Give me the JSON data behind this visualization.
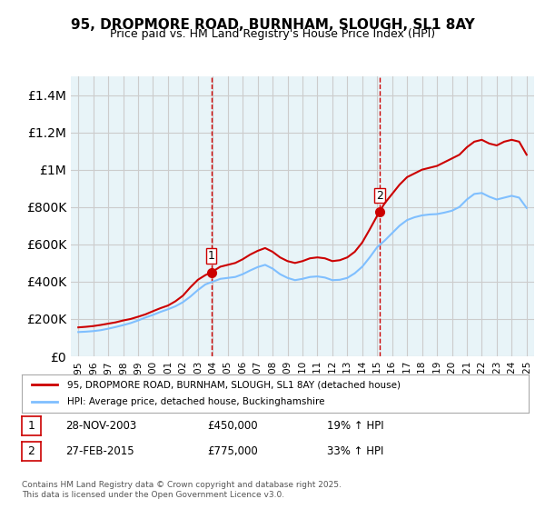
{
  "title": "95, DROPMORE ROAD, BURNHAM, SLOUGH, SL1 8AY",
  "subtitle": "Price paid vs. HM Land Registry's House Price Index (HPI)",
  "legend_label_red": "95, DROPMORE ROAD, BURNHAM, SLOUGH, SL1 8AY (detached house)",
  "legend_label_blue": "HPI: Average price, detached house, Buckinghamshire",
  "annotation1_label": "1",
  "annotation1_date": "28-NOV-2003",
  "annotation1_price": "£450,000",
  "annotation1_hpi": "19% ↑ HPI",
  "annotation2_label": "2",
  "annotation2_date": "27-FEB-2015",
  "annotation2_price": "£775,000",
  "annotation2_hpi": "33% ↑ HPI",
  "footer": "Contains HM Land Registry data © Crown copyright and database right 2025.\nThis data is licensed under the Open Government Licence v3.0.",
  "red_color": "#cc0000",
  "blue_color": "#7fbfff",
  "vline_color": "#cc0000",
  "grid_color": "#cccccc",
  "background_color": "#e8f4f8",
  "plot_bg_color": "#e8f4f8",
  "ylim": [
    0,
    1500000
  ],
  "yticks": [
    0,
    200000,
    400000,
    600000,
    800000,
    1000000,
    1200000,
    1400000
  ],
  "xlim_start": 1994.5,
  "xlim_end": 2025.5,
  "marker1_x": 2003.9,
  "marker1_y": 450000,
  "marker2_x": 2015.15,
  "marker2_y": 775000,
  "red_x": [
    1995.0,
    1995.5,
    1996.0,
    1996.5,
    1997.0,
    1997.5,
    1998.0,
    1998.5,
    1999.0,
    1999.5,
    2000.0,
    2000.5,
    2001.0,
    2001.5,
    2002.0,
    2002.5,
    2003.0,
    2003.5,
    2003.9,
    2004.5,
    2005.0,
    2005.5,
    2006.0,
    2006.5,
    2007.0,
    2007.5,
    2008.0,
    2008.5,
    2009.0,
    2009.5,
    2010.0,
    2010.5,
    2011.0,
    2011.5,
    2012.0,
    2012.5,
    2013.0,
    2013.5,
    2014.0,
    2014.5,
    2015.15,
    2015.5,
    2016.0,
    2016.5,
    2017.0,
    2017.5,
    2018.0,
    2018.5,
    2019.0,
    2019.5,
    2020.0,
    2020.5,
    2021.0,
    2021.5,
    2022.0,
    2022.5,
    2023.0,
    2023.5,
    2024.0,
    2024.5,
    2025.0
  ],
  "red_y": [
    155000,
    158000,
    162000,
    168000,
    175000,
    182000,
    192000,
    200000,
    212000,
    225000,
    242000,
    258000,
    272000,
    295000,
    325000,
    370000,
    410000,
    435000,
    450000,
    480000,
    490000,
    500000,
    520000,
    545000,
    565000,
    580000,
    560000,
    530000,
    510000,
    500000,
    510000,
    525000,
    530000,
    525000,
    510000,
    515000,
    530000,
    560000,
    610000,
    680000,
    775000,
    820000,
    870000,
    920000,
    960000,
    980000,
    1000000,
    1010000,
    1020000,
    1040000,
    1060000,
    1080000,
    1120000,
    1150000,
    1160000,
    1140000,
    1130000,
    1150000,
    1160000,
    1150000,
    1080000
  ],
  "blue_x": [
    1995.0,
    1995.5,
    1996.0,
    1996.5,
    1997.0,
    1997.5,
    1998.0,
    1998.5,
    1999.0,
    1999.5,
    2000.0,
    2000.5,
    2001.0,
    2001.5,
    2002.0,
    2002.5,
    2003.0,
    2003.5,
    2004.0,
    2004.5,
    2005.0,
    2005.5,
    2006.0,
    2006.5,
    2007.0,
    2007.5,
    2008.0,
    2008.5,
    2009.0,
    2009.5,
    2010.0,
    2010.5,
    2011.0,
    2011.5,
    2012.0,
    2012.5,
    2013.0,
    2013.5,
    2014.0,
    2014.5,
    2015.0,
    2015.5,
    2016.0,
    2016.5,
    2017.0,
    2017.5,
    2018.0,
    2018.5,
    2019.0,
    2019.5,
    2020.0,
    2020.5,
    2021.0,
    2021.5,
    2022.0,
    2022.5,
    2023.0,
    2023.5,
    2024.0,
    2024.5,
    2025.0
  ],
  "blue_y": [
    130000,
    132000,
    135000,
    140000,
    148000,
    157000,
    167000,
    178000,
    192000,
    208000,
    222000,
    238000,
    252000,
    268000,
    290000,
    320000,
    355000,
    385000,
    400000,
    415000,
    420000,
    425000,
    440000,
    460000,
    478000,
    490000,
    470000,
    440000,
    420000,
    408000,
    415000,
    425000,
    428000,
    422000,
    408000,
    410000,
    420000,
    445000,
    480000,
    530000,
    585000,
    620000,
    660000,
    700000,
    730000,
    745000,
    755000,
    760000,
    762000,
    770000,
    780000,
    800000,
    840000,
    870000,
    875000,
    855000,
    840000,
    850000,
    860000,
    850000,
    795000
  ]
}
